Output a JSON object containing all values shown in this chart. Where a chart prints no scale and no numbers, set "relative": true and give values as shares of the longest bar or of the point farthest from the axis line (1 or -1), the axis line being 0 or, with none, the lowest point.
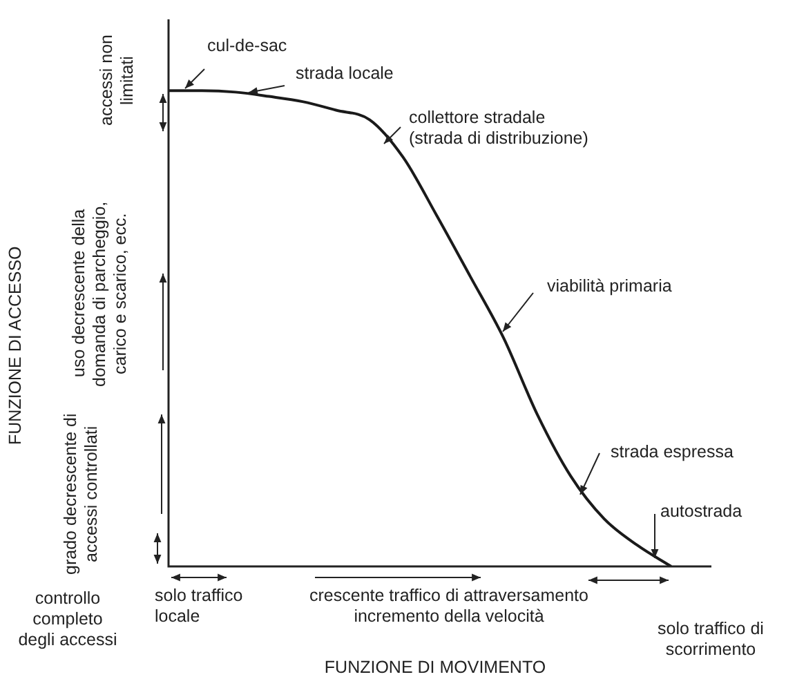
{
  "chart_data": {
    "type": "line",
    "relative": true,
    "marker": "none",
    "color": "#1a1a1a",
    "categories": [
      null,
      null,
      null,
      null,
      null,
      null,
      null,
      null,
      null,
      null,
      null,
      null,
      null,
      null,
      null,
      null
    ],
    "values": [
      1.0,
      1.0,
      0.997,
      0.988,
      0.977,
      0.959,
      0.939,
      0.86,
      0.738,
      0.61,
      0.48,
      0.32,
      0.19,
      0.1,
      0.044,
      0
    ],
    "annotations": [
      "cul-de-sac",
      "strada locale",
      "collettore stradale\n(strada di distribuzione)",
      "viabilità primaria",
      "strada espressa",
      "autostrada",
      "accessi non\nlimitati",
      "uso decrescente della\ndomanda di parcheggio,\ncarico e scarico, ecc.",
      "grado decrescente di\naccessi controllati",
      "controllo\ncompleto\ndegli accessi",
      "solo traffico\nlocale",
      "crescente traffico di attraversamento\nincremento della velocità",
      "solo traffico di\nscorrimento",
      "FUNZIONE DI ACCESSO",
      "FUNZIONE DI MOVIMENTO"
    ]
  }
}
